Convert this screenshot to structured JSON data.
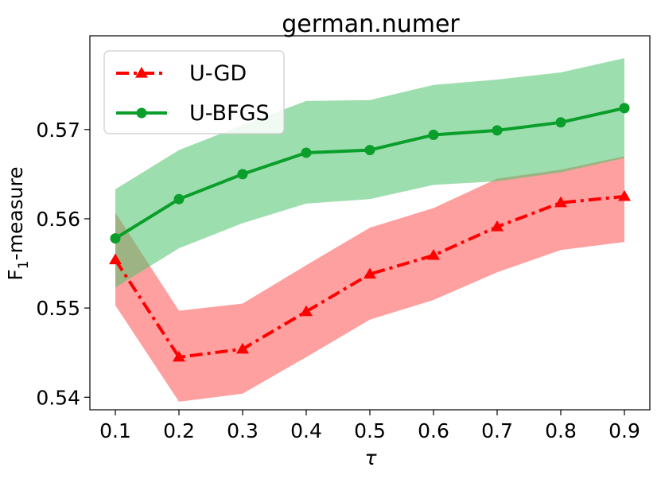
{
  "chart_data": {
    "type": "line",
    "title": "german.numer",
    "xlabel": "τ",
    "ylabel_main": "F",
    "ylabel_sub": "1",
    "ylabel_rest": "-measure",
    "x": [
      0.1,
      0.2,
      0.3,
      0.4,
      0.5,
      0.6,
      0.7,
      0.8,
      0.9
    ],
    "xlim": [
      0.06,
      0.94
    ],
    "ylim": [
      0.5386,
      0.5805
    ],
    "xticks": [
      "0.1",
      "0.2",
      "0.3",
      "0.4",
      "0.5",
      "0.6",
      "0.7",
      "0.8",
      "0.9"
    ],
    "yticks": [
      "0.54",
      "0.55",
      "0.56",
      "0.57"
    ],
    "legend_position": "top-left",
    "series": [
      {
        "name": "U-GD",
        "color": "#ff0000",
        "band_color": "#ff6060",
        "marker": "triangle",
        "line_style": "dash-dot",
        "values": [
          0.5554,
          0.5445,
          0.5454,
          0.5496,
          0.5538,
          0.5559,
          0.5591,
          0.5618,
          0.5625
        ],
        "upper": [
          0.5607,
          0.5497,
          0.5505,
          0.5548,
          0.559,
          0.5612,
          0.5645,
          0.5655,
          0.567
        ],
        "lower": [
          0.5503,
          0.5395,
          0.5404,
          0.5445,
          0.5487,
          0.5509,
          0.554,
          0.5565,
          0.5574
        ]
      },
      {
        "name": "U-BFGS",
        "color": "#0a9e2a",
        "band_color": "#4cc36b",
        "marker": "circle",
        "line_style": "solid",
        "values": [
          0.5578,
          0.5622,
          0.565,
          0.5674,
          0.5677,
          0.5694,
          0.5699,
          0.5708,
          0.5724
        ],
        "upper": [
          0.5633,
          0.5677,
          0.5705,
          0.5732,
          0.5733,
          0.575,
          0.5756,
          0.5764,
          0.578
        ],
        "lower": [
          0.5523,
          0.5567,
          0.5595,
          0.5617,
          0.5622,
          0.5638,
          0.5642,
          0.5652,
          0.5668
        ]
      }
    ]
  }
}
